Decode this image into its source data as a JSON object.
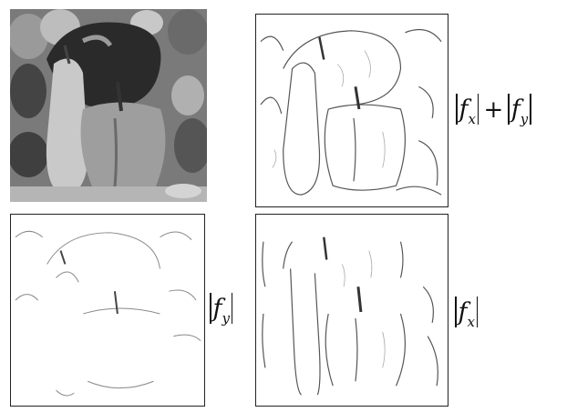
{
  "panels": {
    "original": {
      "caption": ""
    },
    "sum": {
      "caption": ""
    },
    "fy": {
      "caption": ""
    },
    "fx": {
      "caption": ""
    }
  },
  "labels": {
    "sum": {
      "f": "f",
      "x_sub": "x",
      "plus": "+",
      "y_sub": "y"
    },
    "fy": {
      "f": "f",
      "y_sub": "y"
    },
    "fx": {
      "f": "f",
      "x_sub": "x"
    }
  }
}
